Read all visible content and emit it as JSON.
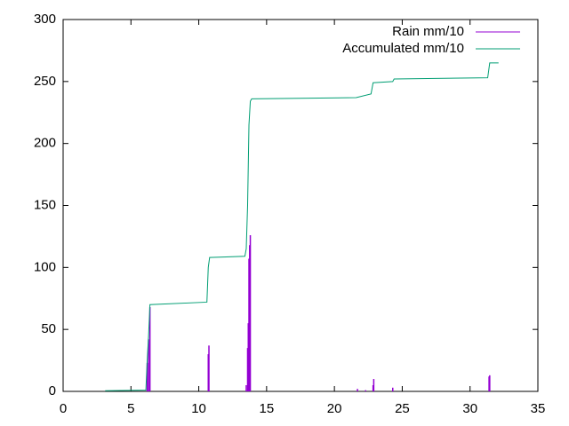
{
  "chart_data": {
    "type": "line",
    "xlim": [
      0,
      35
    ],
    "xticks": [
      0,
      5,
      10,
      15,
      20,
      25,
      30,
      35
    ],
    "ylim": [
      0,
      300
    ],
    "yticks": [
      0,
      50,
      100,
      150,
      200,
      250,
      300
    ],
    "grid": false,
    "legend": "top-right",
    "series": [
      {
        "name": "Rain mm/10",
        "color": "#9400d3",
        "style": "impulses",
        "x": [
          6.2,
          6.3,
          6.4,
          10.7,
          10.75,
          13.5,
          13.6,
          13.65,
          13.7,
          13.75,
          13.8,
          21.7,
          22.3,
          22.85,
          22.9,
          24.3,
          31.4,
          31.45
        ],
        "values": [
          23,
          42,
          68,
          30,
          37,
          5,
          35,
          55,
          107,
          118,
          126,
          2,
          1,
          5,
          10,
          3,
          12,
          13
        ]
      },
      {
        "name": "Accumulated mm/10",
        "color": "#009e73",
        "style": "lines",
        "x": [
          3.1,
          6.1,
          6.2,
          6.3,
          6.4,
          10.6,
          10.7,
          10.8,
          13.4,
          13.5,
          13.6,
          13.7,
          13.8,
          13.9,
          21.6,
          22.7,
          22.85,
          24.3,
          24.4,
          31.3,
          31.45,
          32.1
        ],
        "values": [
          0.5,
          1,
          25,
          45,
          70,
          72,
          100,
          108,
          109,
          115,
          150,
          215,
          234,
          236,
          237,
          240,
          249,
          250,
          252,
          253,
          265,
          265
        ]
      }
    ]
  }
}
